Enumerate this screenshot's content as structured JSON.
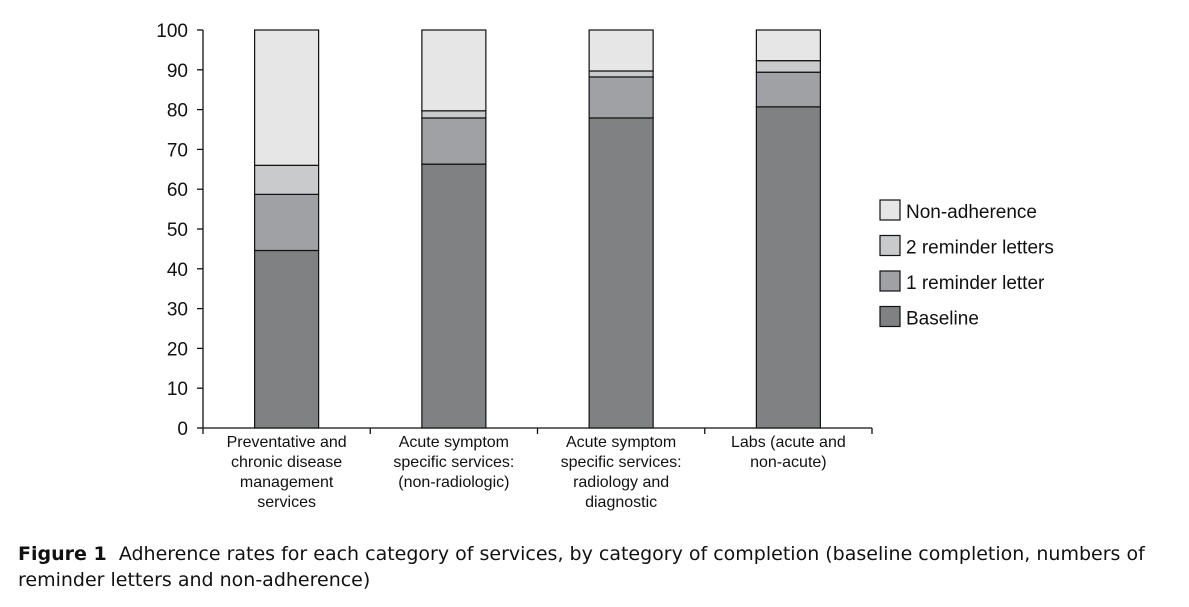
{
  "chart_data": {
    "type": "bar",
    "stacked": true,
    "categories": [
      [
        "Preventative and",
        "chronic disease",
        "management",
        "services"
      ],
      [
        "Acute symptom",
        "specific services:",
        "(non-radiologic)"
      ],
      [
        "Acute symptom",
        "specific services:",
        "radiology and",
        "diagnostic"
      ],
      [
        "Labs (acute and",
        "non-acute)"
      ]
    ],
    "series": [
      {
        "name": "Baseline",
        "color": "#808183",
        "values": [
          44.6,
          66.3,
          77.9,
          80.7
        ]
      },
      {
        "name": "1 reminder letter",
        "color": "#a0a1a4",
        "values": [
          14.1,
          11.6,
          10.3,
          8.7
        ]
      },
      {
        "name": "2 reminder letters",
        "color": "#c9cacc",
        "values": [
          7.3,
          1.8,
          1.5,
          2.9
        ]
      },
      {
        "name": "Non-adherence",
        "color": "#e6e6e7",
        "values": [
          34.0,
          20.3,
          10.3,
          7.7
        ]
      }
    ],
    "legend_order": [
      "Non-adherence",
      "2 reminder letters",
      "1 reminder letter",
      "Baseline"
    ],
    "legend_position": "right",
    "ylim": [
      0,
      100
    ],
    "yticks": [
      0,
      10,
      20,
      30,
      40,
      50,
      60,
      70,
      80,
      90,
      100
    ],
    "xlabel": "",
    "ylabel": "",
    "title": ""
  },
  "caption": {
    "label": "Figure 1",
    "text": "Adherence rates for each category of services, by category of completion (baseline completion, numbers of reminder letters and non-adherence)"
  }
}
